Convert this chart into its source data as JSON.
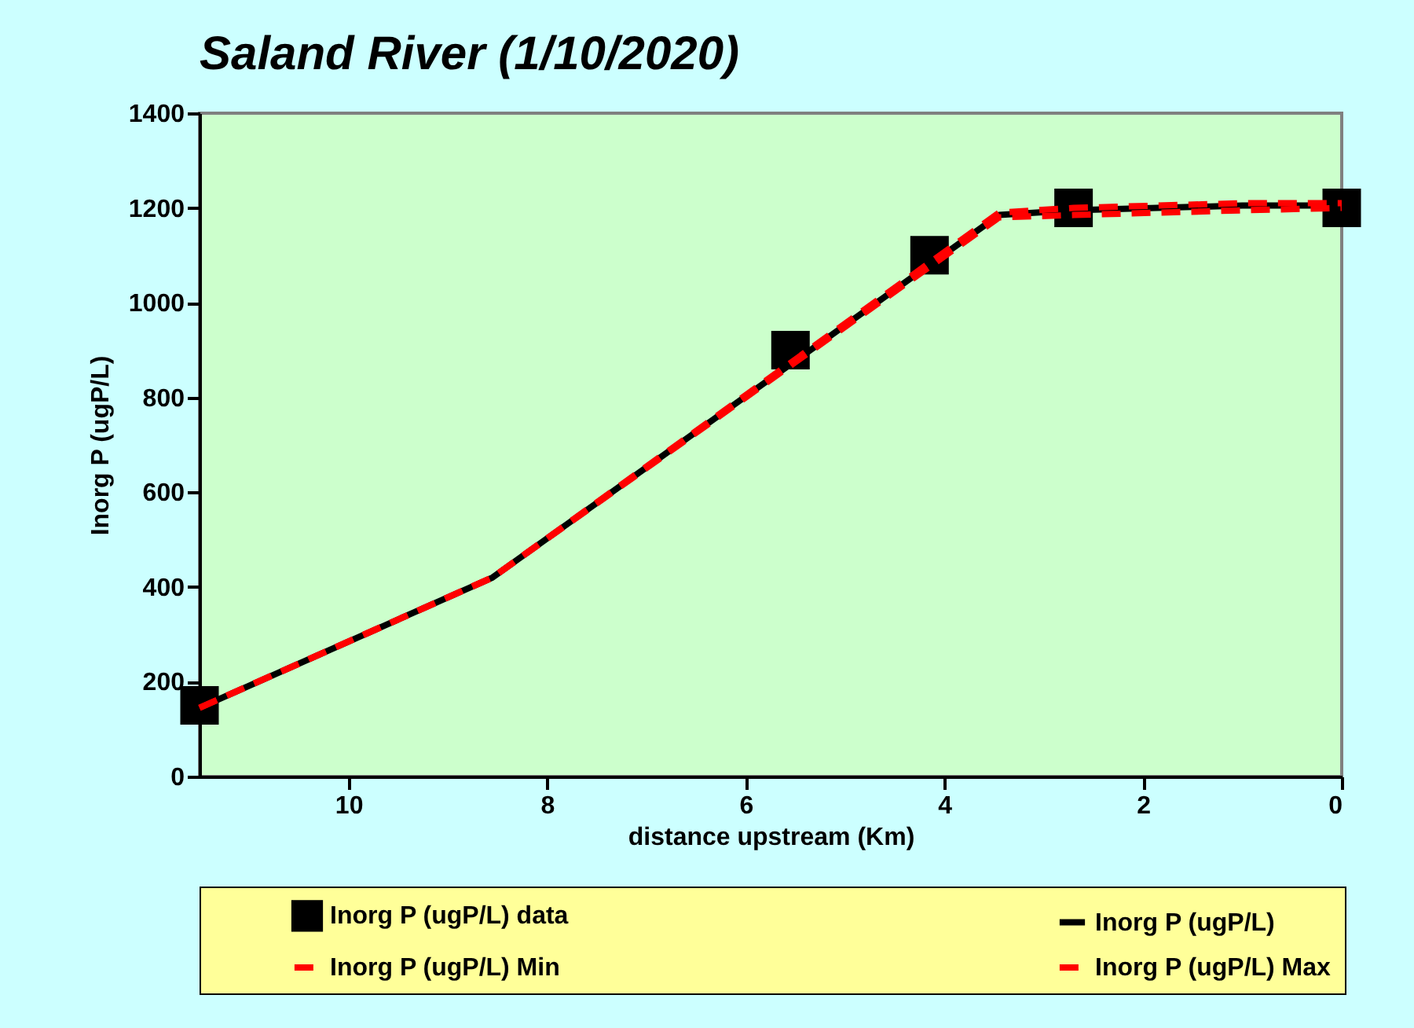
{
  "chart_data": {
    "type": "line",
    "title": "Saland River (1/10/2020)",
    "xlabel": "distance upstream (Km)",
    "ylabel": "Inorg P (ugP/L)",
    "xlim": [
      11.5,
      0
    ],
    "xticks": [
      10,
      8,
      6,
      4,
      2,
      0
    ],
    "ylim": [
      0,
      1400
    ],
    "yticks": [
      0,
      200,
      400,
      600,
      800,
      1000,
      1200,
      1400
    ],
    "grid": false,
    "legend": "bottom",
    "series": [
      {
        "name": "Inorg P (ugP/L) data",
        "type": "scatter",
        "marker": "square",
        "color": "#000000",
        "x": [
          11.5,
          5.55,
          4.15,
          2.7,
          0
        ],
        "values": [
          150,
          900,
          1100,
          1200,
          1200
        ]
      },
      {
        "name": "Inorg P (ugP/L)",
        "line_style": "solid",
        "color": "#000000",
        "x": [
          11.5,
          8.55,
          3.45,
          2.7,
          1.0,
          0
        ],
        "values": [
          145,
          420,
          1185,
          1195,
          1205,
          1205
        ]
      },
      {
        "name": "Inorg P (ugP/L) Min",
        "line_style": "dashed",
        "color": "#ff0000",
        "x": [
          11.5,
          8.55,
          3.45,
          2.7,
          1.0,
          0
        ],
        "values": [
          145,
          420,
          1180,
          1185,
          1195,
          1200
        ]
      },
      {
        "name": "Inorg P (ugP/L) Max",
        "line_style": "dashed",
        "color": "#ff0000",
        "x": [
          11.5,
          8.55,
          3.45,
          2.7,
          1.0,
          0
        ],
        "values": [
          145,
          420,
          1190,
          1200,
          1210,
          1210
        ]
      }
    ]
  }
}
